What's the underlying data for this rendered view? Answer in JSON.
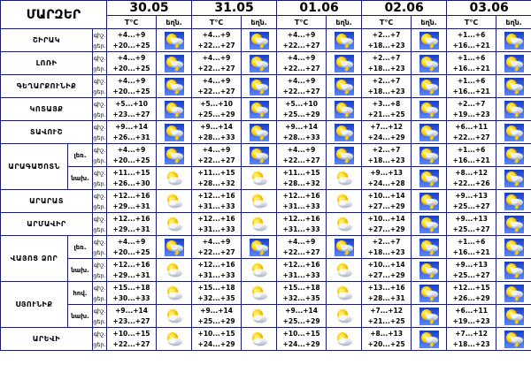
{
  "header": {
    "title": "ՄԱՐԶԵՐ",
    "temp_label": "T°C",
    "weather_label": "եղն.",
    "dates": [
      "30.05",
      "31.05",
      "01.06",
      "02.06",
      "03.06"
    ],
    "tod_labels": [
      "գիշ.",
      "ցեր."
    ]
  },
  "rows": [
    {
      "region": "ՇԻՐԱԿ",
      "zone": "",
      "temps": [
        [
          "+4...+9",
          "+20...+25"
        ],
        [
          "+4...+9",
          "+22...+27"
        ],
        [
          "+4...+9",
          "+22...+27"
        ],
        [
          "+2...+7",
          "+18...+23"
        ],
        [
          "+1...+6",
          "+16...+21"
        ]
      ],
      "icons": [
        "storm",
        "storm",
        "storm",
        "storm",
        "storm"
      ]
    },
    {
      "region": "ԼՈՌԻ",
      "zone": "",
      "temps": [
        [
          "+4...+9",
          "+20...+25"
        ],
        [
          "+4...+9",
          "+22...+27"
        ],
        [
          "+4...+9",
          "+22...+27"
        ],
        [
          "+2...+7",
          "+18...+23"
        ],
        [
          "+1...+6",
          "+16...+21"
        ]
      ],
      "icons": [
        "storm",
        "storm",
        "storm",
        "storm",
        "storm"
      ]
    },
    {
      "region": "ԳԵՂԱՐՔՈՒՆԻՔ",
      "zone": "",
      "temps": [
        [
          "+4...+9",
          "+20...+25"
        ],
        [
          "+4...+9",
          "+22...+27"
        ],
        [
          "+4...+9",
          "+22...+27"
        ],
        [
          "+2...+7",
          "+18...+23"
        ],
        [
          "+1...+6",
          "+16...+21"
        ]
      ],
      "icons": [
        "storm",
        "storm",
        "storm",
        "storm",
        "storm"
      ]
    },
    {
      "region": "ԿՈՏԱՅՔ",
      "zone": "",
      "temps": [
        [
          "+5...+10",
          "+23...+27"
        ],
        [
          "+5...+10",
          "+25...+29"
        ],
        [
          "+5...+10",
          "+25...+29"
        ],
        [
          "+3...+8",
          "+21...+25"
        ],
        [
          "+2...+7",
          "+19...+23"
        ]
      ],
      "icons": [
        "storm",
        "storm",
        "storm",
        "storm",
        "storm"
      ]
    },
    {
      "region": "ՏԱՎՈՒՇ",
      "zone": "",
      "temps": [
        [
          "+9...+14",
          "+26...+31"
        ],
        [
          "+9...+14",
          "+28...+33"
        ],
        [
          "+9...+14",
          "+28...+33"
        ],
        [
          "+7...+12",
          "+24...+29"
        ],
        [
          "+6...+11",
          "+22...+27"
        ]
      ],
      "icons": [
        "storm",
        "storm",
        "storm",
        "storm",
        "storm"
      ]
    },
    {
      "region": "ԱՐԱԳԱԾՈՏՆ",
      "zone": "լեռ.",
      "temps": [
        [
          "+4...+9",
          "+20...+25"
        ],
        [
          "+4...+9",
          "+22...+27"
        ],
        [
          "+4...+9",
          "+22...+27"
        ],
        [
          "+2...+7",
          "+18...+23"
        ],
        [
          "+1...+6",
          "+16...+21"
        ]
      ],
      "icons": [
        "storm",
        "storm",
        "storm",
        "storm",
        "storm"
      ]
    },
    {
      "region": "",
      "zone": "նախ.",
      "temps": [
        [
          "+11...+15",
          "+26...+30"
        ],
        [
          "+11...+15",
          "+28...+32"
        ],
        [
          "+11...+15",
          "+28...+32"
        ],
        [
          "+9...+13",
          "+24...+28"
        ],
        [
          "+8...+12",
          "+22...+26"
        ]
      ],
      "icons": [
        "partly",
        "partly",
        "partly",
        "storm",
        "storm"
      ]
    },
    {
      "region": "ԱՐԱՐԱՏ",
      "zone": "",
      "temps": [
        [
          "+12...+16",
          "+29...+31"
        ],
        [
          "+12...+16",
          "+31...+33"
        ],
        [
          "+12...+16",
          "+31...+33"
        ],
        [
          "+10...+14",
          "+27...+29"
        ],
        [
          "+9...+13",
          "+25...+27"
        ]
      ],
      "icons": [
        "partly",
        "partly",
        "partly",
        "storm",
        "storm"
      ]
    },
    {
      "region": "ԱՐՄԱՎԻՐ",
      "zone": "",
      "temps": [
        [
          "+12...+16",
          "+29...+31"
        ],
        [
          "+12...+16",
          "+31...+33"
        ],
        [
          "+12...+16",
          "+31...+33"
        ],
        [
          "+10...+14",
          "+27...+29"
        ],
        [
          "+9...+13",
          "+25...+27"
        ]
      ],
      "icons": [
        "partly",
        "partly",
        "partly",
        "storm",
        "storm"
      ]
    },
    {
      "region": "ՎԱՅՈՑ ՁՈՐ",
      "zone": "լեռ.",
      "temps": [
        [
          "+4...+9",
          "+20...+25"
        ],
        [
          "+4...+9",
          "+22...+27"
        ],
        [
          "+4...+9",
          "+22...+27"
        ],
        [
          "+2...+7",
          "+18...+23"
        ],
        [
          "+1...+6",
          "+16...+21"
        ]
      ],
      "icons": [
        "storm",
        "storm",
        "storm",
        "storm",
        "storm"
      ]
    },
    {
      "region": "",
      "zone": "նախ.",
      "temps": [
        [
          "+12...+16",
          "+29...+31"
        ],
        [
          "+12...+16",
          "+31...+33"
        ],
        [
          "+12...+16",
          "+31...+33"
        ],
        [
          "+10...+14",
          "+27...+29"
        ],
        [
          "+9...+13",
          "+25...+27"
        ]
      ],
      "icons": [
        "partly",
        "partly",
        "partly",
        "storm",
        "storm"
      ]
    },
    {
      "region": "ՍՅՈՒՆԻՔ",
      "zone": "հով.",
      "temps": [
        [
          "+15...+18",
          "+30...+33"
        ],
        [
          "+15...+18",
          "+32...+35"
        ],
        [
          "+15...+18",
          "+32...+35"
        ],
        [
          "+13...+16",
          "+28...+31"
        ],
        [
          "+12...+15",
          "+26...+29"
        ]
      ],
      "icons": [
        "partly",
        "partly",
        "partly",
        "storm",
        "storm"
      ]
    },
    {
      "region": "",
      "zone": "նախ.",
      "temps": [
        [
          "+9...+14",
          "+23...+27"
        ],
        [
          "+9...+14",
          "+25...+29"
        ],
        [
          "+9...+14",
          "+25...+29"
        ],
        [
          "+7...+12",
          "+21...+25"
        ],
        [
          "+6...+11",
          "+19...+23"
        ]
      ],
      "icons": [
        "partly",
        "partly",
        "partly",
        "storm",
        "storm"
      ]
    },
    {
      "region": "ԱՐԵՎԻ",
      "zone": "",
      "temps": [
        [
          "+10...+15",
          "+22...+27"
        ],
        [
          "+10...+15",
          "+24...+29"
        ],
        [
          "+10...+15",
          "+24...+29"
        ],
        [
          "+8...+13",
          "+20...+25"
        ],
        [
          "+7...+12",
          "+18...+23"
        ]
      ],
      "icons": [
        "partly",
        "partly",
        "partly",
        "storm",
        "storm"
      ]
    }
  ]
}
